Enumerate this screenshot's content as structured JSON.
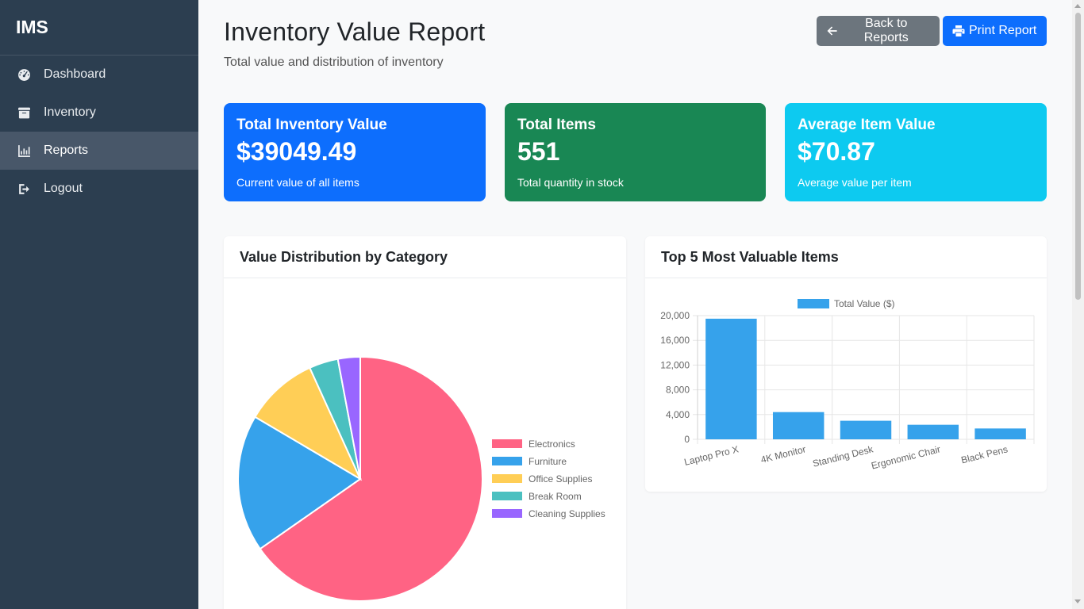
{
  "app": {
    "brand": "IMS"
  },
  "sidebar": {
    "items": [
      {
        "label": "Dashboard",
        "icon": "gauge-icon",
        "active": false
      },
      {
        "label": "Inventory",
        "icon": "box-icon",
        "active": false
      },
      {
        "label": "Reports",
        "icon": "chart-icon",
        "active": true
      },
      {
        "label": "Logout",
        "icon": "logout-icon",
        "active": false
      }
    ]
  },
  "header": {
    "title": "Inventory Value Report",
    "subtitle": "Total value and distribution of inventory",
    "back_label": "Back to Reports",
    "print_label": "Print Report"
  },
  "stats": [
    {
      "title": "Total Inventory Value",
      "value": "$39049.49",
      "sub": "Current value of all items",
      "color": "#0d6efd"
    },
    {
      "title": "Total Items",
      "value": "551",
      "sub": "Total quantity in stock",
      "color": "#198754"
    },
    {
      "title": "Average Item Value",
      "value": "$70.87",
      "sub": "Average value per item",
      "color": "#0dcaf0"
    }
  ],
  "cards": {
    "pie_title": "Value Distribution by Category",
    "bar_title": "Top 5 Most Valuable Items"
  },
  "chart_data": [
    {
      "type": "pie",
      "title": "Value Distribution by Category",
      "categories": [
        "Electronics",
        "Furniture",
        "Office Supplies",
        "Break Room",
        "Cleaning Supplies"
      ],
      "values": [
        25500,
        7100,
        3800,
        1500,
        1150
      ],
      "colors": [
        "#ff6384",
        "#36a2eb",
        "#ffce56",
        "#4bc0c0",
        "#9966ff"
      ],
      "legend": "right"
    },
    {
      "type": "bar",
      "title": "Top 5 Most Valuable Items",
      "categories": [
        "Laptop Pro X",
        "4K Monitor",
        "Standing Desk",
        "Ergonomic Chair",
        "Black Pens"
      ],
      "series": [
        {
          "name": "Total Value ($)",
          "values": [
            19500,
            4400,
            3000,
            2350,
            1750
          ]
        }
      ],
      "ylim": [
        0,
        20000
      ],
      "yticks": [
        0,
        4000,
        8000,
        12000,
        16000,
        20000
      ],
      "ytick_labels": [
        "0",
        "4,000",
        "8,000",
        "12,000",
        "16,000",
        "20,000"
      ],
      "color": "#36a2eb",
      "legend": "top"
    }
  ]
}
